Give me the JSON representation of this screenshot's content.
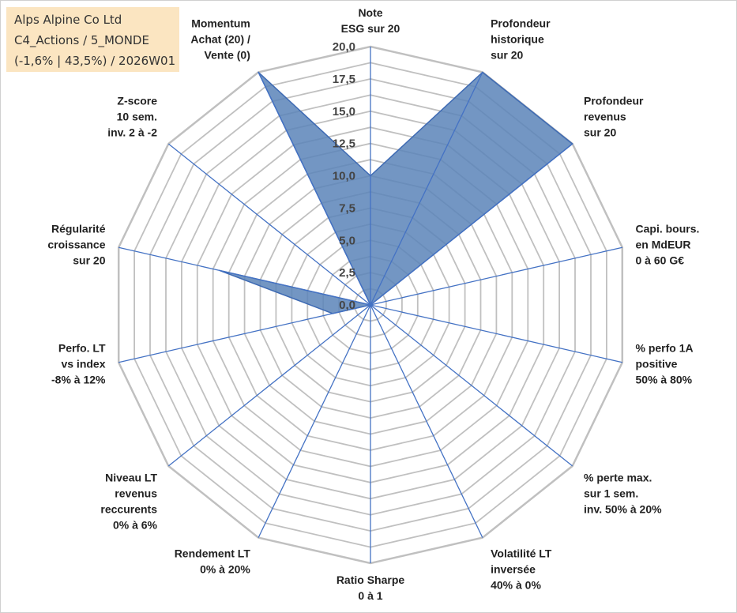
{
  "header": {
    "lines": [
      "Alps Alpine Co Ltd",
      "C4_Actions / 5_MONDE",
      "(-1,6% | 43,5%) / 2026W01"
    ]
  },
  "colors": {
    "fill": "#5b84b8",
    "stroke": "#3e6ab3",
    "grid": "#c0c0c0",
    "axis": "#4472c4",
    "header_bg": "#fbe5c1"
  },
  "chart_data": {
    "type": "radar",
    "title": "Alps Alpine Co Ltd",
    "rmax": 20,
    "ticks": [
      "0,0",
      "2,5",
      "5,0",
      "7,5",
      "10,0",
      "12,5",
      "15,0",
      "17,5",
      "20,0"
    ],
    "tick_values": [
      0,
      2.5,
      5,
      7.5,
      10,
      12.5,
      15,
      17.5,
      20
    ],
    "axes": [
      {
        "label": [
          "Note",
          "ESG sur 20"
        ],
        "value": 10
      },
      {
        "label": [
          "Profondeur",
          "historique",
          "sur 20"
        ],
        "value": 20
      },
      {
        "label": [
          "Profondeur",
          "revenus",
          "sur 20"
        ],
        "value": 20
      },
      {
        "label": [
          "Capi. bours.",
          "en MdEUR",
          "0 à 60 G€"
        ],
        "value": 0
      },
      {
        "label": [
          "% perfo 1A",
          "positive",
          "50% à 80%"
        ],
        "value": 0
      },
      {
        "label": [
          "% perte max.",
          "sur 1 sem.",
          "inv. 50% à 20%"
        ],
        "value": 0
      },
      {
        "label": [
          "Volatilité LT",
          "inversée",
          "40% à 0%"
        ],
        "value": 0
      },
      {
        "label": [
          "Ratio Sharpe",
          "0 à 1"
        ],
        "value": 0
      },
      {
        "label": [
          "Rendement LT",
          "0% à 20%"
        ],
        "value": 0
      },
      {
        "label": [
          "Niveau LT",
          "revenus",
          "reccurents",
          "0% à 6%"
        ],
        "value": 0
      },
      {
        "label": [
          "Perfo. LT",
          "vs index",
          "-8% à 12%"
        ],
        "value": 3
      },
      {
        "label": [
          "Régularité",
          "croissance",
          "sur 20"
        ],
        "value": 12
      },
      {
        "label": [
          "Z-score",
          "10 sem.",
          "inv. 2 à -2"
        ],
        "value": 0
      },
      {
        "label": [
          "Momentum",
          "Achat (20) /",
          "Vente (0)"
        ],
        "value": 20
      }
    ]
  }
}
